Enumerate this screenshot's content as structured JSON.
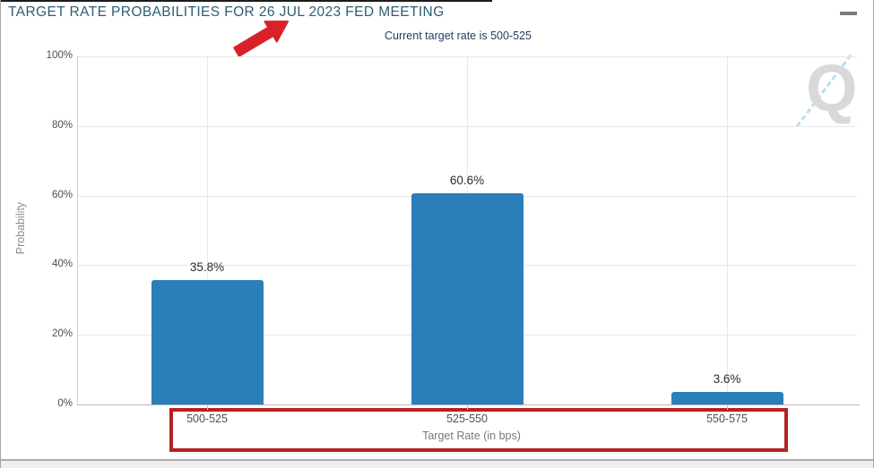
{
  "header": {
    "title": "TARGET RATE PROBABILITIES FOR 26 JUL 2023 FED MEETING",
    "subtitle": "Current target rate is 500-525"
  },
  "menu": {
    "icon": "hamburger-menu-icon"
  },
  "watermark": {
    "letter": "Q"
  },
  "chart_data": {
    "type": "bar",
    "title": "TARGET RATE PROBABILITIES FOR 26 JUL 2023 FED MEETING",
    "subtitle": "Current target rate is 500-525",
    "categories": [
      "500-525",
      "525-550",
      "550-575"
    ],
    "values": [
      35.8,
      60.6,
      3.6
    ],
    "value_labels": [
      "35.8%",
      "60.6%",
      "3.6%"
    ],
    "xlabel": "Target Rate (in bps)",
    "ylabel": "Probability",
    "ylim": [
      0,
      100
    ],
    "ytick_values": [
      0,
      20,
      40,
      60,
      80,
      100
    ],
    "ytick_labels": [
      "0%",
      "20%",
      "40%",
      "60%",
      "80%",
      "100%"
    ],
    "grid": true,
    "legend": false,
    "bar_color": "#2b7fb8"
  },
  "annotations": {
    "arrow_color": "#da2128",
    "box_color": "#b62222"
  }
}
